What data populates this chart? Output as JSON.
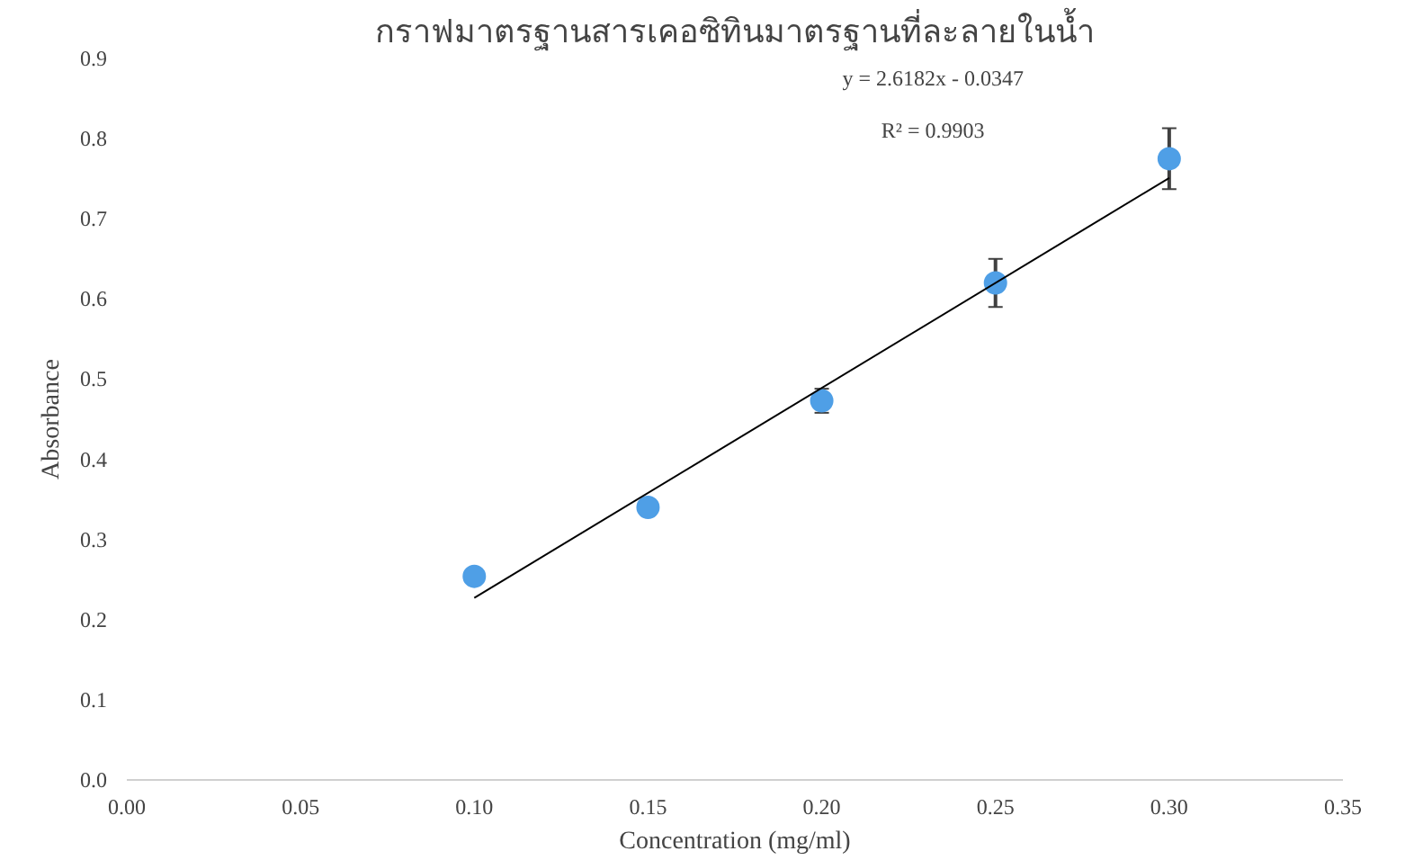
{
  "chart_data": {
    "type": "scatter",
    "title": "กราฟมาตรฐานสารเคอซิทินมาตรฐานที่ละลายในน้ำ",
    "xlabel": "Concentration (mg/ml)",
    "ylabel": "Absorbance",
    "x": [
      0.1,
      0.15,
      0.2,
      0.25,
      0.3
    ],
    "series": [
      {
        "color": "#4f9fe6",
        "values": [
          0.254,
          0.34,
          0.473,
          0.62,
          0.775
        ],
        "errors": [
          0.005,
          0.01,
          0.015,
          0.03,
          0.038
        ],
        "marker": "circle"
      },
      {
        "type": "line",
        "color": "#000000",
        "x": [
          0.1,
          0.3
        ],
        "values": [
          0.227,
          0.751
        ]
      }
    ],
    "annotations": [
      "y = 2.6182x - 0.0347",
      "R² = 0.9903"
    ],
    "xlim": [
      0,
      0.35
    ],
    "ylim": [
      0,
      0.9
    ],
    "xticks": [
      {
        "value": 0,
        "label": "0.00"
      },
      {
        "value": 0.05,
        "label": "0.05"
      },
      {
        "value": 0.1,
        "label": "0.10"
      },
      {
        "value": 0.15,
        "label": "0.15"
      },
      {
        "value": 0.2,
        "label": "0.20"
      },
      {
        "value": 0.25,
        "label": "0.25"
      },
      {
        "value": 0.3,
        "label": "0.30"
      },
      {
        "value": 0.35,
        "label": "0.35"
      }
    ],
    "yticks": [
      {
        "value": 0,
        "label": "0.0"
      },
      0.1,
      0.2,
      0.3,
      0.4,
      0.5,
      0.6,
      0.7,
      0.8,
      0.9
    ],
    "grid": false
  }
}
